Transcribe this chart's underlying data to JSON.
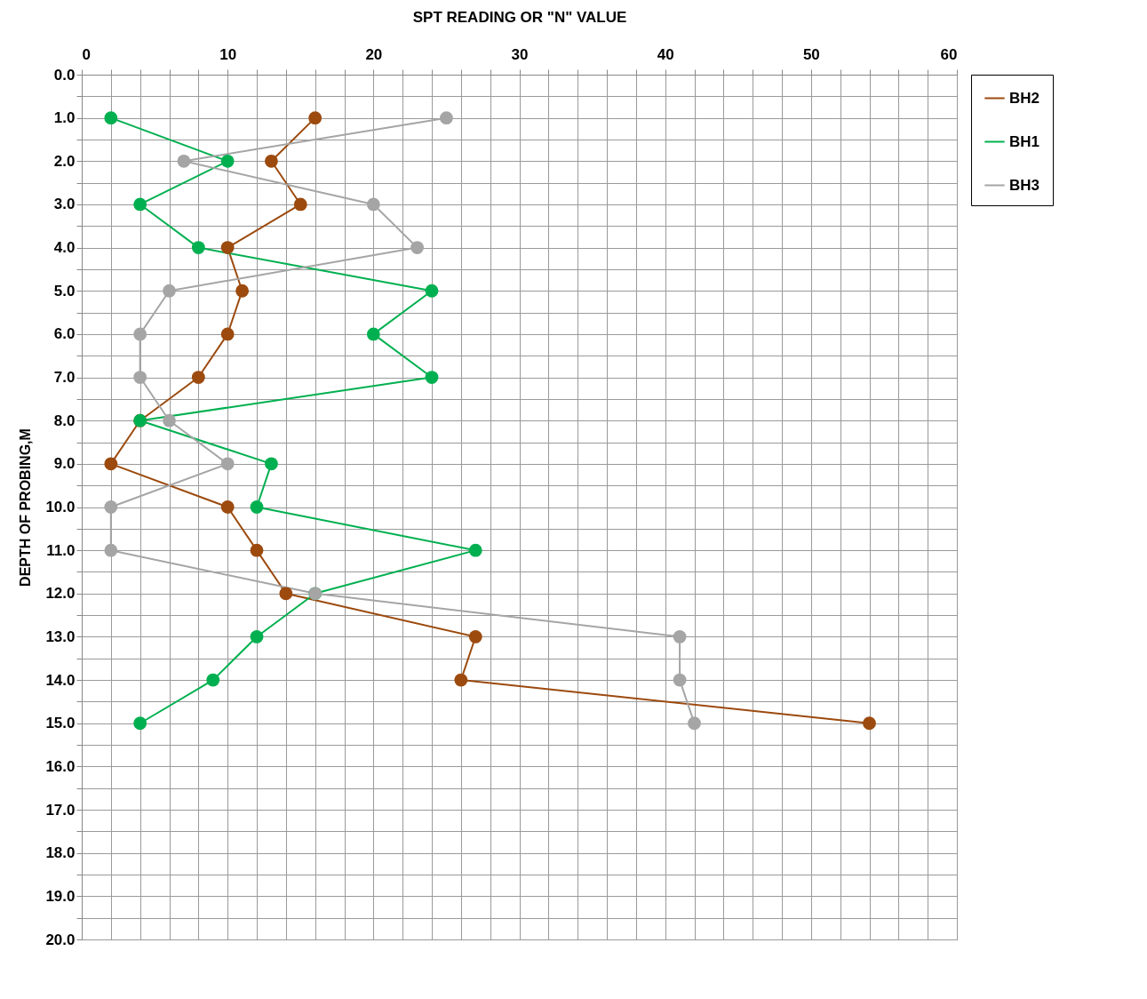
{
  "chart_data": {
    "type": "line",
    "xlabel": "SPT  READING OR \"N\" VALUE",
    "ylabel": "DEPTH OF PROBING,M",
    "xlim": [
      0,
      60
    ],
    "xticks": [
      0,
      {
        "value": 2,
        "label": null
      },
      {
        "value": 4,
        "label": null
      },
      {
        "value": 6,
        "label": null
      },
      {
        "value": 8,
        "label": null
      },
      10,
      {
        "value": 12,
        "label": null
      },
      {
        "value": 14,
        "label": null
      },
      {
        "value": 16,
        "label": null
      },
      {
        "value": 18,
        "label": null
      },
      20,
      {
        "value": 22,
        "label": null
      },
      {
        "value": 24,
        "label": null
      },
      {
        "value": 26,
        "label": null
      },
      {
        "value": 28,
        "label": null
      },
      30,
      {
        "value": 32,
        "label": null
      },
      {
        "value": 34,
        "label": null
      },
      {
        "value": 36,
        "label": null
      },
      {
        "value": 38,
        "label": null
      },
      40,
      {
        "value": 42,
        "label": null
      },
      {
        "value": 44,
        "label": null
      },
      {
        "value": 46,
        "label": null
      },
      {
        "value": 48,
        "label": null
      },
      50,
      {
        "value": 52,
        "label": null
      },
      {
        "value": 54,
        "label": null
      },
      {
        "value": 56,
        "label": null
      },
      {
        "value": 58,
        "label": null
      },
      60
    ],
    "ylim": [
      20,
      0
    ],
    "yticks": [
      {
        "value": 0,
        "label": "0.0"
      },
      {
        "value": 0.5,
        "label": null
      },
      {
        "value": 1,
        "label": "1.0"
      },
      {
        "value": 1.5,
        "label": null
      },
      {
        "value": 2,
        "label": "2.0"
      },
      {
        "value": 2.5,
        "label": null
      },
      {
        "value": 3,
        "label": "3.0"
      },
      {
        "value": 3.5,
        "label": null
      },
      {
        "value": 4,
        "label": "4.0"
      },
      {
        "value": 4.5,
        "label": null
      },
      {
        "value": 5,
        "label": "5.0"
      },
      {
        "value": 5.5,
        "label": null
      },
      {
        "value": 6,
        "label": "6.0"
      },
      {
        "value": 6.5,
        "label": null
      },
      {
        "value": 7,
        "label": "7.0"
      },
      {
        "value": 7.5,
        "label": null
      },
      {
        "value": 8,
        "label": "8.0"
      },
      {
        "value": 8.5,
        "label": null
      },
      {
        "value": 9,
        "label": "9.0"
      },
      {
        "value": 9.5,
        "label": null
      },
      {
        "value": 10,
        "label": "10.0"
      },
      {
        "value": 10.5,
        "label": null
      },
      {
        "value": 11,
        "label": "11.0"
      },
      {
        "value": 11.5,
        "label": null
      },
      {
        "value": 12,
        "label": "12.0"
      },
      {
        "value": 12.5,
        "label": null
      },
      {
        "value": 13,
        "label": "13.0"
      },
      {
        "value": 13.5,
        "label": null
      },
      {
        "value": 14,
        "label": "14.0"
      },
      {
        "value": 14.5,
        "label": null
      },
      {
        "value": 15,
        "label": "15.0"
      },
      {
        "value": 15.5,
        "label": null
      },
      {
        "value": 16,
        "label": "16.0"
      },
      {
        "value": 16.5,
        "label": null
      },
      {
        "value": 17,
        "label": "17.0"
      },
      {
        "value": 17.5,
        "label": null
      },
      {
        "value": 18,
        "label": "18.0"
      },
      {
        "value": 18.5,
        "label": null
      },
      {
        "value": 19,
        "label": "19.0"
      },
      {
        "value": 19.5,
        "label": null
      },
      {
        "value": 20,
        "label": "20.0"
      }
    ],
    "grid": true,
    "legend": "right",
    "marker": "circle",
    "line_style": "solid",
    "series": [
      {
        "name": "BH2",
        "color": "#9c4a0e",
        "x": [
          16,
          13,
          15,
          10,
          11,
          10,
          8,
          4,
          2,
          10,
          12,
          14,
          27,
          26,
          54
        ],
        "values": [
          1,
          2,
          3,
          4,
          5,
          6,
          7,
          8,
          9,
          10,
          11,
          12,
          13,
          14,
          15
        ]
      },
      {
        "name": "BH1",
        "color": "#00b050",
        "x": [
          2,
          10,
          4,
          8,
          24,
          20,
          24,
          4,
          13,
          12,
          27,
          16,
          12,
          9,
          4
        ],
        "values": [
          1,
          2,
          3,
          4,
          5,
          6,
          7,
          8,
          9,
          10,
          11,
          12,
          13,
          14,
          15
        ]
      },
      {
        "name": "BH3",
        "color": "#a5a5a5",
        "x": [
          25,
          7,
          20,
          23,
          6,
          4,
          4,
          6,
          10,
          2,
          2,
          16,
          41,
          41,
          42
        ],
        "values": [
          1,
          2,
          3,
          4,
          5,
          6,
          7,
          8,
          9,
          10,
          11,
          12,
          13,
          14,
          15
        ]
      }
    ]
  }
}
